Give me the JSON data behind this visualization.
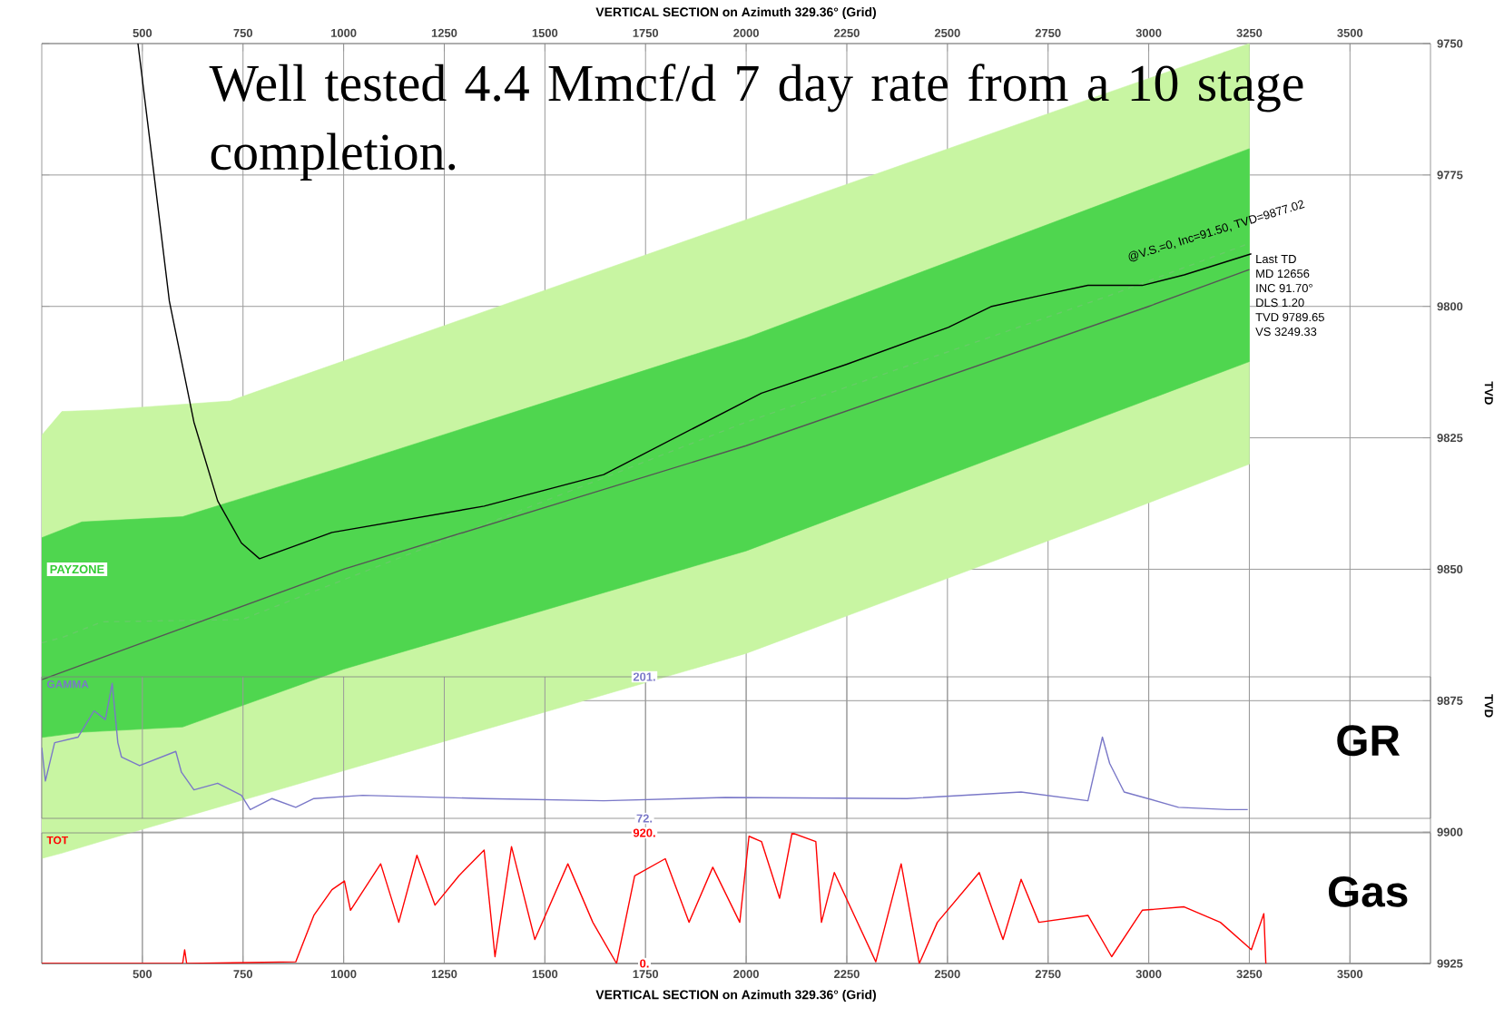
{
  "chart_data": [
    {
      "type": "line",
      "xlabel": "VERTICAL SECTION on Azimuth 329.36° (Grid)",
      "ylabel": "TVD",
      "xlim": [
        250,
        3700
      ],
      "xticks": [
        500,
        750,
        1000,
        1250,
        1500,
        1750,
        2000,
        2250,
        2500,
        2750,
        3000,
        3250,
        3500
      ],
      "ylim": [
        9925,
        9750
      ],
      "yticks": [
        9750,
        9775,
        9800,
        9825,
        9850,
        9875,
        9900,
        9925
      ],
      "grid": true,
      "annotations": [
        "Well tested 4.4 Mmcf/d 7 day rate from a 10 stage completion.",
        "PAYZONE",
        "@V.S.=0, Inc=91.50, TVD=9877.02",
        "Last TD",
        "MD 12656",
        "INC 91.70°",
        "DLS 1.20",
        "TVD 9789.65",
        "VS 3249.33",
        "TVD"
      ],
      "series": [
        {
          "type": "line",
          "color": "#66cc66",
          "line_style": "dashed",
          "x": [
            250,
            300,
            400,
            718,
            750,
            2000,
            2900,
            3250
          ],
          "values": [
            9864,
            9863,
            9860,
            9859.6,
            9859.5,
            9822,
            9798,
            9788
          ],
          "lower": [
            9824.5,
            9820,
            9819.7,
            9818,
            9817.1,
            9783.5,
            9759.3,
            9750
          ],
          "upper": [
            9905,
            9904,
            9901.7,
            9894.6,
            9893.9,
            9866,
            9840.3,
            9830
          ]
        },
        {
          "type": "line",
          "color": "#555555",
          "x": [
            250,
            350,
            600,
            1000,
            2000,
            3000,
            3250
          ],
          "values": [
            9871,
            9868.2,
            9861.2,
            9850,
            9826.5,
            9800,
            9793
          ],
          "lower": [
            9844,
            9841,
            9840,
            9830.5,
            9806,
            9777.2,
            9770
          ],
          "upper": [
            9882,
            9881,
            9880,
            9869,
            9846.5,
            9817.7,
            9810.5
          ]
        },
        {
          "type": "line",
          "color": "#000000",
          "x": [
            489,
            529,
            567,
            628,
            687,
            746,
            791,
            971,
            1349,
            1646,
            2038,
            2250,
            2502,
            2610,
            2727,
            2849,
            2984,
            3088,
            3151,
            3255
          ],
          "values": [
            9750,
            9775,
            9799,
            9822,
            9837,
            9845,
            9848,
            9843,
            9838,
            9832,
            9816.5,
            9811,
            9804,
            9800,
            9798,
            9796,
            9796,
            9794,
            9792.5,
            9790
          ]
        }
      ]
    },
    {
      "type": "line",
      "title": "GR",
      "ylabel": "GAMMA",
      "xlim": [
        250,
        3700
      ],
      "xticks": [
        {
          "value": 500,
          "label": null
        },
        {
          "value": 750,
          "label": null
        },
        {
          "value": 1000,
          "label": null
        },
        {
          "value": 1250,
          "label": null
        },
        {
          "value": 1500,
          "label": null
        },
        {
          "value": 1750,
          "label": null
        },
        {
          "value": 2000,
          "label": null
        },
        {
          "value": 2250,
          "label": null
        },
        {
          "value": 2500,
          "label": null
        },
        {
          "value": 2750,
          "label": null
        },
        {
          "value": 3000,
          "label": null
        },
        {
          "value": 3250,
          "label": null
        },
        {
          "value": 3500,
          "label": null
        }
      ],
      "ylim": [
        72,
        201
      ],
      "yticks": [
        {
          "value": 72,
          "label": "72."
        },
        {
          "value": 201,
          "label": "201."
        }
      ],
      "grid": "x",
      "tick_labels": "y",
      "series": [
        {
          "color": "#7a78c8",
          "x": [
            250,
            259,
            282,
            340,
            380,
            408,
            425,
            439,
            448,
            493,
            583,
            597,
            628,
            687,
            746,
            768,
            822,
            881,
            926,
            1047,
            1349,
            1646,
            1948,
            2399,
            2683,
            2849,
            2885,
            2903,
            2939,
            2998,
            3074,
            3196,
            3246
          ],
          "values": [
            136.5,
            106,
            141,
            146,
            170,
            162,
            195,
            141,
            128,
            120,
            133,
            114,
            98,
            104,
            93,
            80,
            90,
            82,
            90,
            93,
            90,
            88,
            91,
            90,
            96,
            88,
            146,
            122,
            96,
            90,
            82,
            80,
            80
          ]
        }
      ]
    },
    {
      "type": "line",
      "title": "Gas",
      "ylabel": "TOT",
      "xlabel": "VERTICAL SECTION on Azimuth 329.36° (Grid)",
      "xlim": [
        250,
        3700
      ],
      "xticks": [
        500,
        750,
        1000,
        1250,
        1500,
        1750,
        2000,
        2250,
        2500,
        2750,
        3000,
        3250,
        3500
      ],
      "ylim": [
        0,
        920
      ],
      "yticks": [
        {
          "value": 0,
          "label": "0."
        },
        {
          "value": 920,
          "label": "920."
        }
      ],
      "grid": "x",
      "series": [
        {
          "color": "#ff0000",
          "x": [
            250,
            583,
            600,
            605,
            610,
            881,
            926,
            971,
            1002,
            1017,
            1092,
            1137,
            1182,
            1227,
            1286,
            1349,
            1376,
            1417,
            1475,
            1557,
            1619,
            1678,
            1723,
            1799,
            1858,
            1917,
            1984,
            2007,
            2038,
            2083,
            2114,
            2173,
            2187,
            2219,
            2322,
            2385,
            2430,
            2475,
            2579,
            2638,
            2683,
            2727,
            2849,
            2908,
            2984,
            3088,
            3178,
            3255,
            3286,
            3291
          ],
          "values": [
            0,
            0,
            0,
            97,
            0,
            12,
            339,
            520,
            581,
            375,
            702,
            290,
            762,
            411,
            617,
            799,
            48,
            823,
            169,
            702,
            290,
            0,
            617,
            738,
            290,
            678,
            290,
            896,
            859,
            460,
            920,
            859,
            290,
            641,
            12,
            702,
            0,
            290,
            641,
            169,
            593,
            290,
            339,
            48,
            375,
            399,
            290,
            97,
            351,
            0
          ]
        }
      ]
    }
  ]
}
